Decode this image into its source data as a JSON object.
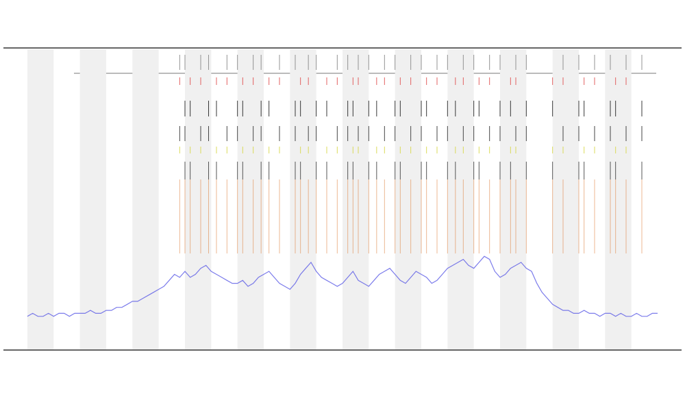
{
  "chart_data": {
    "type": "line",
    "x": [
      0,
      1,
      2,
      3,
      4,
      5,
      6,
      7,
      8,
      9,
      10,
      11,
      12,
      13,
      14,
      15,
      16,
      17,
      18,
      19,
      20,
      21,
      22,
      23,
      24,
      25,
      26,
      27,
      28,
      29,
      30,
      31,
      32,
      33,
      34,
      35,
      36,
      37,
      38,
      39,
      40,
      41,
      42,
      43,
      44,
      45,
      46,
      47,
      48,
      49,
      50,
      51,
      52,
      53,
      54,
      55,
      56,
      57,
      58,
      59,
      60,
      61,
      62,
      63,
      64,
      65,
      66,
      67,
      68,
      69,
      70,
      71,
      72,
      73,
      74,
      75,
      76,
      77,
      78,
      79,
      80,
      81,
      82,
      83,
      84,
      85,
      86,
      87,
      88,
      89,
      90,
      91,
      92,
      93,
      94,
      95,
      96,
      97,
      98,
      99,
      100,
      101,
      102,
      103,
      104,
      105,
      106,
      107,
      108,
      109,
      110,
      111,
      112,
      113,
      114,
      115,
      116,
      117,
      118,
      119,
      120
    ],
    "series": [
      {
        "color": "#5a5ae6",
        "values": [
          11,
          12,
          11,
          11,
          12,
          11,
          12,
          12,
          11,
          12,
          12,
          12,
          13,
          12,
          12,
          13,
          13,
          14,
          14,
          15,
          16,
          16,
          17,
          18,
          19,
          20,
          21,
          23,
          25,
          24,
          26,
          24,
          25,
          27,
          28,
          26,
          25,
          24,
          23,
          22,
          22,
          23,
          21,
          22,
          24,
          25,
          26,
          24,
          22,
          21,
          20,
          22,
          25,
          27,
          29,
          26,
          24,
          23,
          22,
          21,
          22,
          24,
          26,
          23,
          22,
          21,
          23,
          25,
          26,
          27,
          25,
          23,
          22,
          24,
          26,
          25,
          24,
          22,
          23,
          25,
          27,
          28,
          29,
          30,
          28,
          27,
          29,
          31,
          30,
          26,
          24,
          25,
          27,
          28,
          29,
          27,
          26,
          22,
          19,
          17,
          15,
          14,
          13,
          13,
          12,
          12,
          13,
          12,
          12,
          11,
          12,
          12,
          11,
          12,
          11,
          11,
          12,
          11,
          11,
          12,
          12
        ]
      }
    ],
    "events": [
      29,
      30,
      31,
      33,
      34.5,
      36,
      38,
      40,
      41,
      43,
      44.5,
      46,
      48,
      51,
      52,
      53.5,
      55,
      57,
      59,
      61,
      62,
      63,
      65,
      66.5,
      68,
      70,
      71,
      73,
      75,
      76,
      78,
      80,
      81.5,
      83,
      85,
      86,
      88,
      90,
      92,
      93,
      95,
      100,
      102,
      105,
      106,
      108,
      111,
      112,
      114,
      117
    ],
    "event_colors": [
      "#888888",
      "#e05050",
      "#222222",
      "#333333",
      "#d8d84a",
      "#444444",
      "#e0884a"
    ],
    "bands": [
      [
        0,
        5
      ],
      [
        10,
        15
      ],
      [
        20,
        25
      ],
      [
        30,
        35
      ],
      [
        40,
        45
      ],
      [
        50,
        55
      ],
      [
        60,
        65
      ],
      [
        70,
        75
      ],
      [
        80,
        85
      ],
      [
        90,
        95
      ],
      [
        100,
        105
      ],
      [
        110,
        115
      ]
    ],
    "band_color": "#f0f0f0",
    "xlim": [
      0,
      120
    ],
    "ylim": [
      0,
      100
    ]
  }
}
